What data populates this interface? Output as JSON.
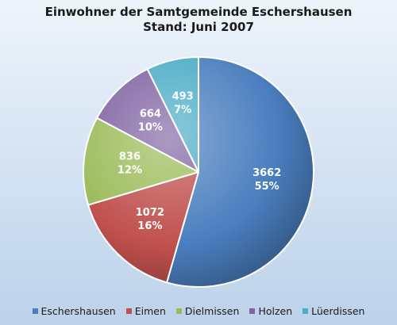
{
  "chart_data": {
    "type": "pie",
    "title_lines": [
      "Einwohner der Samtgemeinde Eschershausen",
      "Stand: Juni 2007"
    ],
    "categories": [
      "Eschershausen",
      "Eimen",
      "Dielmissen",
      "Holzen",
      "Lüerdissen"
    ],
    "values": [
      3662,
      1072,
      836,
      664,
      493
    ],
    "percent_labels": [
      "55%",
      "16%",
      "12%",
      "10%",
      "7%"
    ],
    "value_labels": [
      "3662",
      "1072",
      "836",
      "664",
      "493"
    ],
    "colors": [
      "#4a7ebf",
      "#c0504d",
      "#9bbb59",
      "#8064a2",
      "#4bacc6"
    ],
    "start_angle_deg": 0,
    "direction": "clockwise",
    "legend_position": "bottom",
    "style": "3d-shaded"
  }
}
